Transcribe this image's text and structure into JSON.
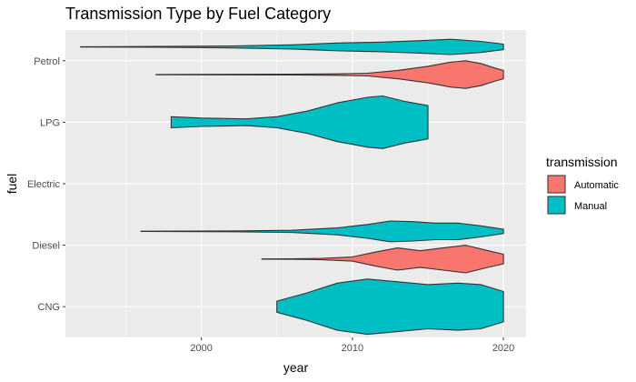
{
  "chart_data": {
    "type": "violin",
    "orientation": "horizontal",
    "title": "Transmission Type by Fuel Category",
    "xlabel": "year",
    "ylabel": "fuel",
    "xlim": [
      1991.0,
      2021.5
    ],
    "xticks": [
      2000,
      2010,
      2020
    ],
    "xtick_labels": [
      "2000",
      "2010",
      "2020"
    ],
    "categories": [
      "CNG",
      "Diesel",
      "Electric",
      "LPG",
      "Petrol"
    ],
    "grid": true,
    "legend": {
      "title": "transmission",
      "position": "right",
      "entries": [
        {
          "name": "Automatic",
          "color": "#F8766D"
        },
        {
          "name": "Manual",
          "color": "#00BFC4"
        }
      ]
    },
    "series": [
      {
        "name": "Automatic",
        "color": "#F8766D",
        "violins": [
          {
            "category": "Diesel",
            "density": [
              [
                2004,
                0.01
              ],
              [
                2006,
                0.02
              ],
              [
                2008,
                0.05
              ],
              [
                2010,
                0.15
              ],
              [
                2011.5,
                0.5
              ],
              [
                2013,
                0.8
              ],
              [
                2014.5,
                0.6
              ],
              [
                2016,
                0.8
              ],
              [
                2017.5,
                1.0
              ],
              [
                2019,
                0.6
              ],
              [
                2020,
                0.35
              ]
            ]
          },
          {
            "category": "Petrol",
            "density": [
              [
                1997,
                0.01
              ],
              [
                2002,
                0.02
              ],
              [
                2006,
                0.03
              ],
              [
                2009,
                0.05
              ],
              [
                2011,
                0.1
              ],
              [
                2013,
                0.3
              ],
              [
                2015,
                0.6
              ],
              [
                2016.5,
                0.9
              ],
              [
                2017.5,
                1.0
              ],
              [
                2018.5,
                0.8
              ],
              [
                2019.5,
                0.45
              ],
              [
                2020,
                0.3
              ]
            ]
          }
        ]
      },
      {
        "name": "Manual",
        "color": "#00BFC4",
        "violins": [
          {
            "category": "CNG",
            "density": [
              [
                2005,
                0.2
              ],
              [
                2007,
                0.5
              ],
              [
                2009,
                0.85
              ],
              [
                2011,
                1.0
              ],
              [
                2013,
                0.9
              ],
              [
                2015,
                0.8
              ],
              [
                2017,
                0.85
              ],
              [
                2018.5,
                0.8
              ],
              [
                2020,
                0.55
              ]
            ]
          },
          {
            "category": "Diesel",
            "density": [
              [
                1996,
                0.01
              ],
              [
                2002,
                0.03
              ],
              [
                2006,
                0.08
              ],
              [
                2009,
                0.25
              ],
              [
                2011,
                0.5
              ],
              [
                2012.5,
                0.75
              ],
              [
                2014,
                0.7
              ],
              [
                2015.5,
                0.6
              ],
              [
                2017,
                0.6
              ],
              [
                2018.5,
                0.4
              ],
              [
                2020,
                0.15
              ]
            ]
          },
          {
            "category": "LPG",
            "density": [
              [
                1998,
                0.2
              ],
              [
                2000,
                0.15
              ],
              [
                2003,
                0.12
              ],
              [
                2005,
                0.2
              ],
              [
                2007,
                0.4
              ],
              [
                2009,
                0.7
              ],
              [
                2011,
                0.9
              ],
              [
                2012,
                0.95
              ],
              [
                2013.5,
                0.75
              ],
              [
                2015,
                0.6
              ]
            ]
          },
          {
            "category": "Petrol",
            "density": [
              [
                1992,
                0.01
              ],
              [
                1997,
                0.03
              ],
              [
                2002,
                0.07
              ],
              [
                2006,
                0.15
              ],
              [
                2009,
                0.28
              ],
              [
                2012,
                0.35
              ],
              [
                2014.5,
                0.45
              ],
              [
                2016.5,
                0.55
              ],
              [
                2018.5,
                0.4
              ],
              [
                2020,
                0.2
              ]
            ]
          }
        ]
      }
    ]
  }
}
